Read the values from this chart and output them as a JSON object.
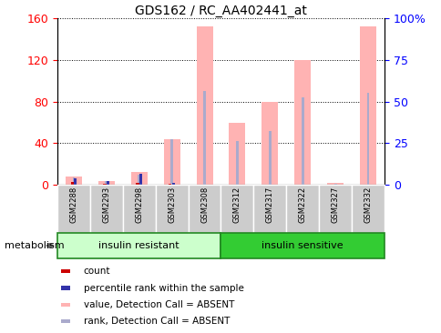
{
  "title": "GDS162 / RC_AA402441_at",
  "samples": [
    "GSM2288",
    "GSM2293",
    "GSM2298",
    "GSM2303",
    "GSM2308",
    "GSM2312",
    "GSM2317",
    "GSM2322",
    "GSM2327",
    "GSM2332"
  ],
  "pink_bars": [
    8,
    4,
    12,
    44,
    152,
    60,
    80,
    120,
    2,
    152
  ],
  "blue_bars": [
    7,
    4,
    10,
    44,
    90,
    42,
    52,
    84,
    1,
    88
  ],
  "red_counts": [
    3,
    1,
    2,
    1,
    0,
    0,
    0,
    0,
    0,
    0
  ],
  "blue_counts": [
    6,
    4,
    11,
    2,
    0,
    0,
    0,
    0,
    0,
    0
  ],
  "group1_label": "insulin resistant",
  "group2_label": "insulin sensitive",
  "ylim_left": [
    0,
    160
  ],
  "ylim_right": [
    0,
    100
  ],
  "yticks_left": [
    0,
    40,
    80,
    120,
    160
  ],
  "yticks_right": [
    0,
    25,
    50,
    75,
    100
  ],
  "ytick_labels_right": [
    "0",
    "25",
    "50",
    "75",
    "100%"
  ],
  "pink_color": "#FFB3B3",
  "blue_bar_color": "#AAAACC",
  "red_dot_color": "#CC0000",
  "blue_dot_color": "#3333AA",
  "group1_bg": "#CCFFCC",
  "group2_bg": "#33CC33",
  "sample_bg": "#CCCCCC",
  "legend_items": [
    {
      "label": "count",
      "color": "#CC0000"
    },
    {
      "label": "percentile rank within the sample",
      "color": "#3333AA"
    },
    {
      "label": "value, Detection Call = ABSENT",
      "color": "#FFB3B3"
    },
    {
      "label": "rank, Detection Call = ABSENT",
      "color": "#AAAACC"
    }
  ],
  "metabolism_label": "metabolism"
}
